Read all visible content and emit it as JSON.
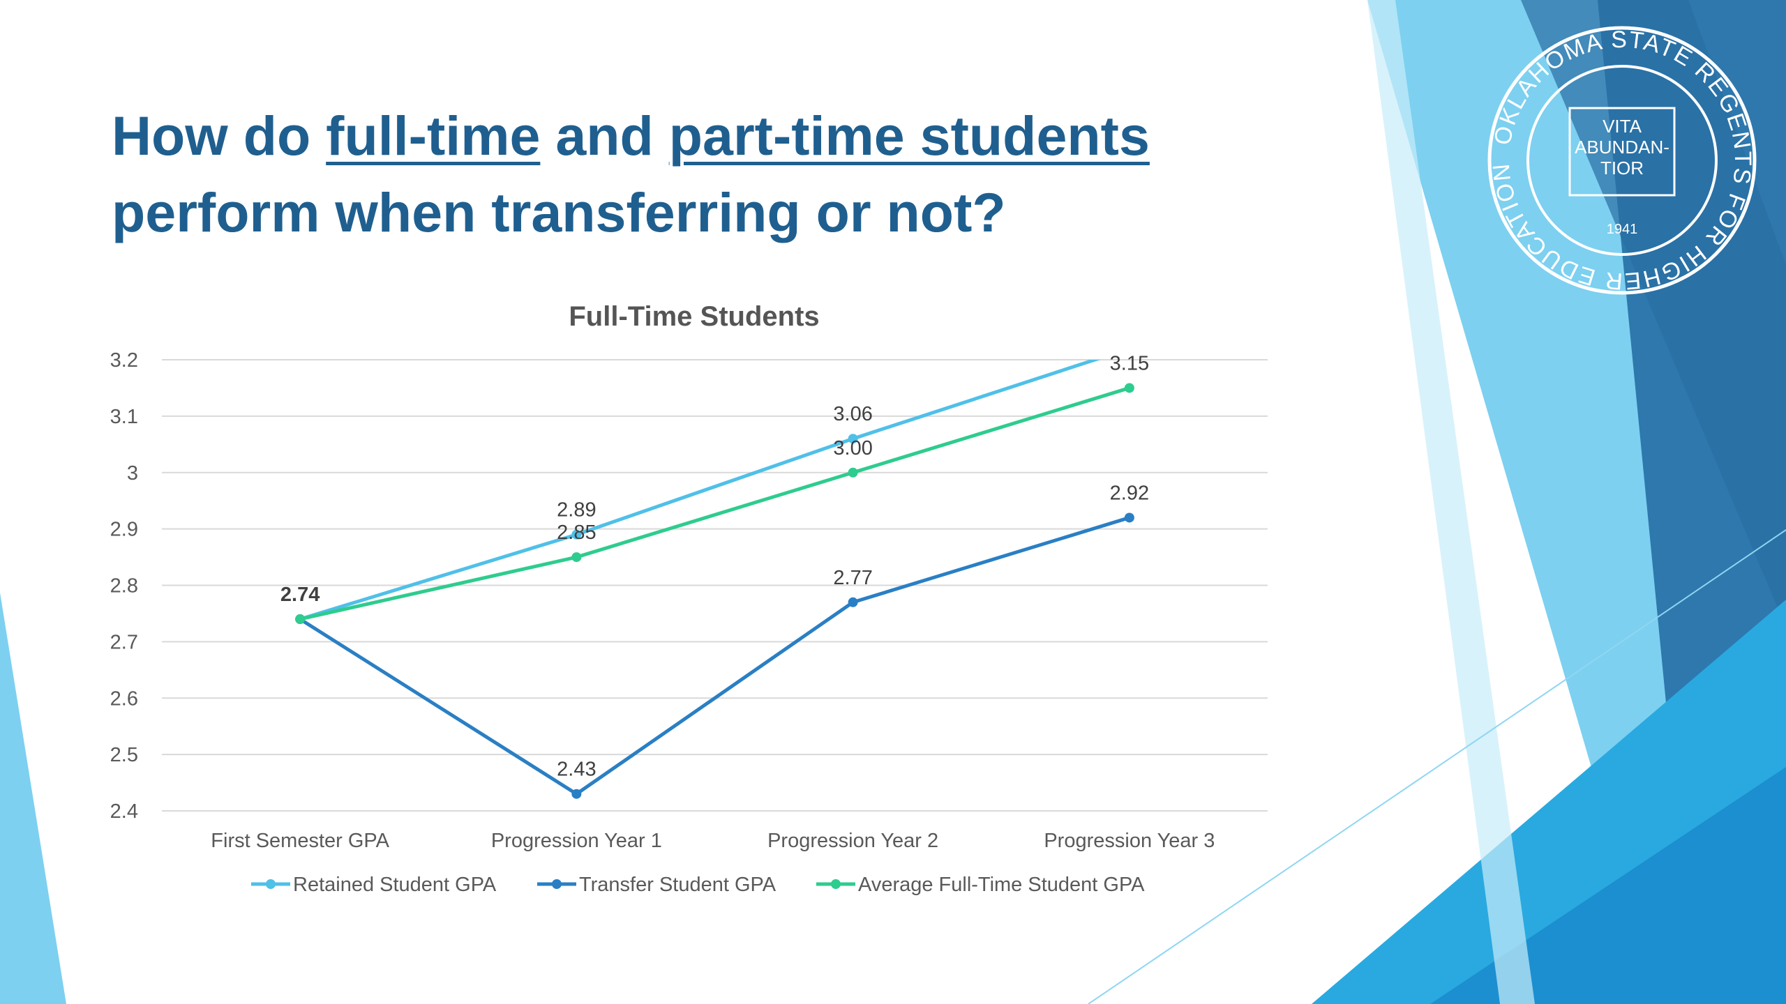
{
  "slide": {
    "title_parts": [
      "How do ",
      "full-time",
      " and ",
      "part-time students",
      " perform when transferring or not?"
    ],
    "logo": {
      "outer_text": "OKLAHOMA STATE REGENTS FOR HIGHER EDUCATION",
      "motto": [
        "VITA",
        "ABUNDAN-",
        "TIOR"
      ],
      "year": "1941"
    }
  },
  "chart_data": {
    "type": "line",
    "title": "Full-Time Students",
    "categories": [
      "First Semester GPA",
      "Progression Year 1",
      "Progression Year 2",
      "Progression Year 3"
    ],
    "ylim": [
      2.4,
      3.2
    ],
    "yticks": [
      "2.4",
      "2.5",
      "2.6",
      "2.7",
      "2.8",
      "2.9",
      "3",
      "3.1",
      "3.2"
    ],
    "grid": true,
    "legend": "bottom",
    "series": [
      {
        "name": "Retained Student GPA",
        "color": "#4fc0e8",
        "values": [
          2.74,
          2.89,
          3.06,
          3.22
        ],
        "labels": [
          "",
          "2.89",
          "3.06",
          ""
        ]
      },
      {
        "name": "Transfer Student GPA",
        "color": "#2a7fc4",
        "values": [
          2.74,
          2.43,
          2.77,
          2.92
        ],
        "labels": [
          "",
          "2.43",
          "2.77",
          "2.92"
        ]
      },
      {
        "name": "Average Full-Time Student GPA",
        "color": "#2ecc8e",
        "values": [
          2.74,
          2.85,
          3.0,
          3.15
        ],
        "labels": [
          "2.74",
          "2.85",
          "3.00",
          "3.15"
        ]
      }
    ]
  }
}
